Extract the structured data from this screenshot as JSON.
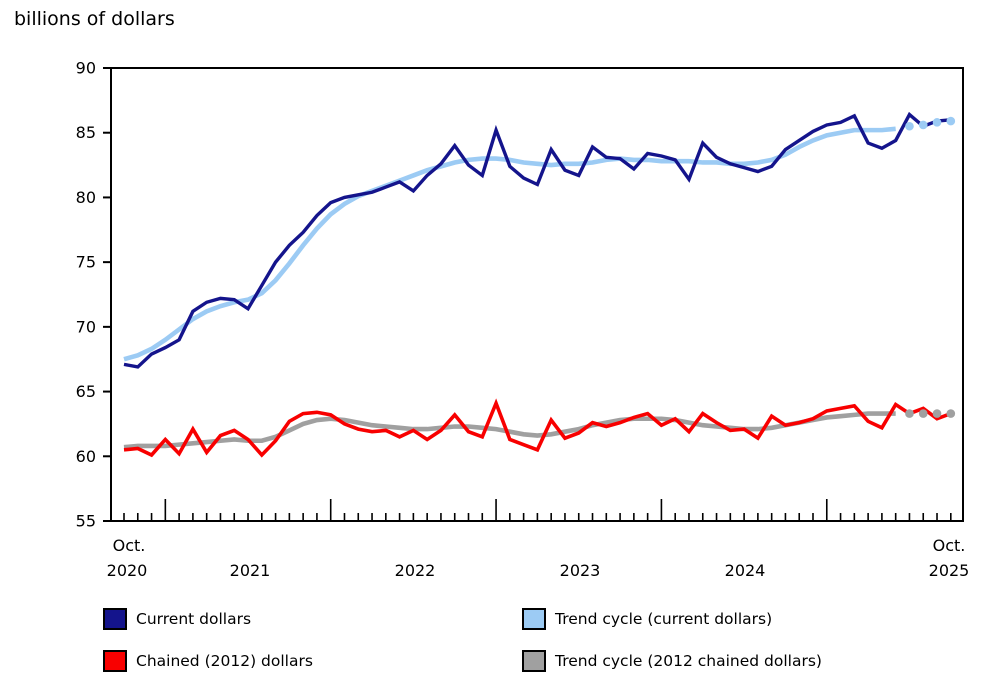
{
  "title": "billions of dollars",
  "y_axis": {
    "ticks": [
      90,
      85,
      80,
      75,
      70,
      65,
      60,
      55
    ]
  },
  "x_axis": {
    "start_month": "Oct.",
    "start_year": "2020",
    "years": [
      "2021",
      "2022",
      "2023",
      "2024"
    ],
    "end_month": "Oct.",
    "end_year": "2025"
  },
  "legend": {
    "items": [
      {
        "label": "Current dollars",
        "color": "#14148C"
      },
      {
        "label": "Trend cycle (current dollars)",
        "color": "#9CCBF4"
      },
      {
        "label": "Chained (2012) dollars",
        "color": "#F80000"
      },
      {
        "label": "Trend cycle (2012 chained dollars)",
        "color": "#A0A0A0"
      }
    ]
  },
  "chart_data": {
    "type": "line",
    "title": "billions of dollars",
    "x_start": "Oct 2020",
    "x_end": "Oct 2025",
    "frequency": "monthly",
    "n_points": 61,
    "ylim": [
      55,
      90
    ],
    "ytick_step": 5,
    "grid": false,
    "legend_position": "below",
    "y_ticks": [
      90,
      85,
      80,
      75,
      70,
      65,
      60,
      55
    ],
    "note": "long x ticks mark January of each year; last four points of each trend-cycle series are plotted as dots",
    "series": [
      {
        "name": "Trend cycle (current dollars)",
        "color": "#9CCBF4",
        "width": 4.6,
        "tail_dots": 4,
        "values": [
          67.5,
          67.8,
          68.3,
          69.0,
          69.8,
          70.6,
          71.2,
          71.6,
          71.9,
          72.1,
          72.6,
          73.6,
          74.9,
          76.3,
          77.6,
          78.7,
          79.5,
          80.1,
          80.5,
          80.9,
          81.3,
          81.7,
          82.1,
          82.4,
          82.7,
          82.9,
          83.0,
          83.0,
          82.9,
          82.7,
          82.6,
          82.5,
          82.6,
          82.6,
          82.7,
          82.9,
          83.0,
          82.9,
          82.9,
          82.8,
          82.8,
          82.8,
          82.7,
          82.7,
          82.6,
          82.6,
          82.7,
          82.9,
          83.3,
          83.9,
          84.4,
          84.8,
          85.0,
          85.2,
          85.2,
          85.2,
          85.3,
          85.5,
          85.6,
          85.8,
          85.9
        ]
      },
      {
        "name": "Trend cycle (2012 chained dollars)",
        "color": "#A0A0A0",
        "width": 4.6,
        "tail_dots": 4,
        "values": [
          60.7,
          60.8,
          60.8,
          60.8,
          60.9,
          61.0,
          61.1,
          61.2,
          61.3,
          61.2,
          61.2,
          61.5,
          62.0,
          62.5,
          62.8,
          62.9,
          62.8,
          62.6,
          62.4,
          62.3,
          62.2,
          62.1,
          62.1,
          62.2,
          62.3,
          62.3,
          62.2,
          62.1,
          61.9,
          61.7,
          61.6,
          61.7,
          61.9,
          62.1,
          62.4,
          62.6,
          62.8,
          62.9,
          62.9,
          62.9,
          62.8,
          62.6,
          62.4,
          62.3,
          62.2,
          62.1,
          62.1,
          62.2,
          62.4,
          62.6,
          62.8,
          63.0,
          63.1,
          63.2,
          63.3,
          63.3,
          63.3,
          63.3,
          63.3,
          63.3,
          63.3
        ]
      },
      {
        "name": "Current dollars",
        "color": "#14148C",
        "width": 3.4,
        "tail_dots": 0,
        "values": [
          67.1,
          66.9,
          67.9,
          68.4,
          69.0,
          71.2,
          71.9,
          72.2,
          72.1,
          71.4,
          73.2,
          75.0,
          76.3,
          77.3,
          78.6,
          79.6,
          80.0,
          80.2,
          80.4,
          80.8,
          81.2,
          80.5,
          81.7,
          82.6,
          84.0,
          82.5,
          81.7,
          85.2,
          82.4,
          81.5,
          81.0,
          83.7,
          82.1,
          81.7,
          83.9,
          83.1,
          83.0,
          82.2,
          83.4,
          83.2,
          82.9,
          81.4,
          84.2,
          83.1,
          82.6,
          82.3,
          82.0,
          82.4,
          83.7,
          84.4,
          85.1,
          85.6,
          85.8,
          86.3,
          84.2,
          83.8,
          84.4,
          86.4,
          85.5,
          85.9,
          86.0
        ]
      },
      {
        "name": "Chained (2012) dollars",
        "color": "#F80000",
        "width": 3.6,
        "tail_dots": 0,
        "values": [
          60.5,
          60.6,
          60.1,
          61.3,
          60.2,
          62.1,
          60.3,
          61.6,
          62.0,
          61.3,
          60.1,
          61.2,
          62.7,
          63.3,
          63.4,
          63.2,
          62.5,
          62.1,
          61.9,
          62.0,
          61.5,
          62.0,
          61.3,
          62.0,
          63.2,
          61.9,
          61.5,
          64.1,
          61.3,
          60.9,
          60.5,
          62.8,
          61.4,
          61.8,
          62.6,
          62.3,
          62.6,
          63.0,
          63.3,
          62.4,
          62.9,
          61.9,
          63.3,
          62.6,
          62.0,
          62.1,
          61.4,
          63.1,
          62.4,
          62.6,
          62.9,
          63.5,
          63.7,
          63.9,
          62.7,
          62.2,
          64.0,
          63.3,
          63.7,
          62.9,
          63.3
        ]
      }
    ]
  }
}
